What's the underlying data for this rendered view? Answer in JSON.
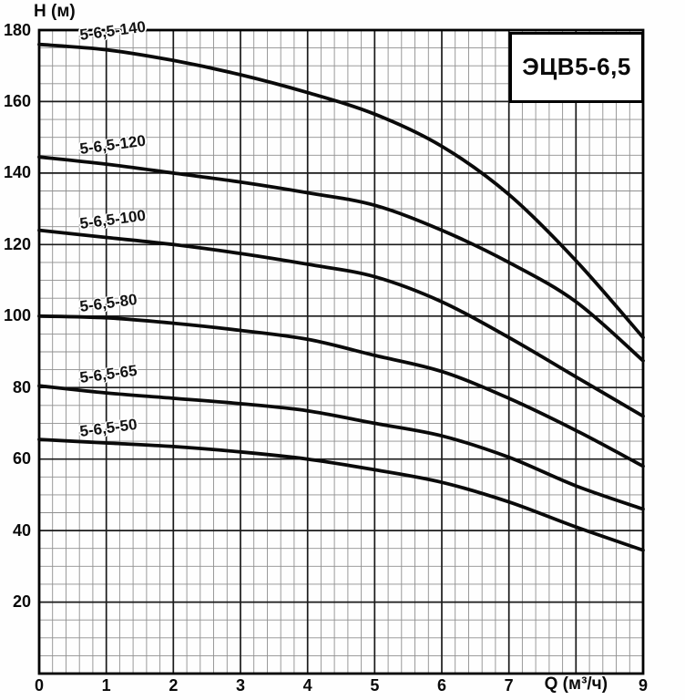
{
  "page": {
    "background": "#fefefe"
  },
  "axes": {
    "y_axis_title": "H (м)",
    "x_axis_title": "Q (м³/ч)",
    "x_axis_title_position": 8,
    "y_ticks": [
      {
        "v": 20,
        "label": "20"
      },
      {
        "v": 40,
        "label": "40"
      },
      {
        "v": 60,
        "label": "60"
      },
      {
        "v": 80,
        "label": "80"
      },
      {
        "v": 100,
        "label": "100"
      },
      {
        "v": 120,
        "label": "120"
      },
      {
        "v": 140,
        "label": "140"
      },
      {
        "v": 160,
        "label": "160"
      },
      {
        "v": 180,
        "label": "180"
      }
    ],
    "x_ticks": [
      {
        "v": 0,
        "label": "0"
      },
      {
        "v": 1,
        "label": "1"
      },
      {
        "v": 2,
        "label": "2"
      },
      {
        "v": 3,
        "label": "3"
      },
      {
        "v": 4,
        "label": "4"
      },
      {
        "v": 5,
        "label": "5"
      },
      {
        "v": 6,
        "label": "6"
      },
      {
        "v": 7,
        "label": "7"
      },
      {
        "v": 9,
        "label": "9"
      }
    ]
  },
  "title_box": {
    "label": "ЭЦВ5-6,5",
    "fill": "#ffffff",
    "border_color": "#000000",
    "span_x": [
      7,
      9
    ],
    "span_y": [
      160,
      179.5
    ]
  },
  "chart_data": {
    "type": "line",
    "title": "ЭЦВ5-6,5",
    "xlabel": "Q (м³/ч)",
    "ylabel": "H (м)",
    "xlim": [
      0,
      9
    ],
    "ylim": [
      0,
      180
    ],
    "grid": "on",
    "x_major_step": 1,
    "x_minor_step": 0.2,
    "y_major_step": 20,
    "y_minor_step": 5,
    "line_color": "#0a0a0a",
    "major_grid_color": "#1a1a1a",
    "minor_grid_color": "#8f8f8f",
    "x": [
      0,
      1,
      2,
      3,
      4,
      5,
      6,
      7,
      8,
      9
    ],
    "series": [
      {
        "name": "5-6,5-140",
        "values": [
          176,
          174.5,
          171.5,
          167.5,
          162.5,
          156.5,
          147.5,
          134,
          115.5,
          94
        ],
        "label_pos": [
          0.62,
          176.6
        ]
      },
      {
        "name": "5-6,5-120",
        "values": [
          144.5,
          142.5,
          140,
          137.5,
          134.5,
          131,
          124,
          115,
          104,
          87.5
        ],
        "label_pos": [
          0.62,
          144.7
        ]
      },
      {
        "name": "5-6,5-100",
        "values": [
          124,
          122,
          120,
          117.5,
          114.5,
          111,
          104,
          94,
          83,
          72
        ],
        "label_pos": [
          0.62,
          124.0
        ]
      },
      {
        "name": "5-6,5-80",
        "values": [
          100,
          99.5,
          98,
          96,
          93.5,
          89,
          84.5,
          77,
          68,
          58
        ],
        "label_pos": [
          0.62,
          100.8
        ]
      },
      {
        "name": "5-6,5-65",
        "values": [
          80.5,
          78.5,
          77,
          75.5,
          73.5,
          70,
          66.5,
          60.5,
          52.5,
          46
        ],
        "label_pos": [
          0.62,
          80.8
        ]
      },
      {
        "name": "5-6,5-50",
        "values": [
          65.5,
          64.5,
          63.5,
          62,
          60,
          57,
          53.5,
          48,
          41,
          34.5
        ],
        "label_pos": [
          0.62,
          65.9
        ]
      }
    ]
  }
}
